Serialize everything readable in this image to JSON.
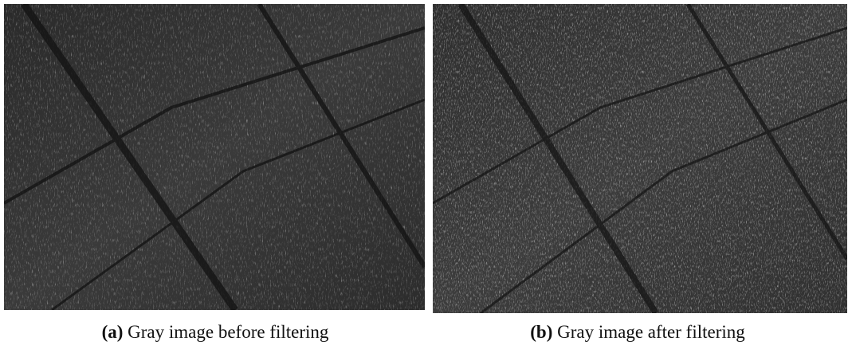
{
  "panels": [
    {
      "label": "(a)",
      "caption": "Gray image before filtering"
    },
    {
      "label": "(b)",
      "caption": "Gray image after filtering"
    }
  ]
}
